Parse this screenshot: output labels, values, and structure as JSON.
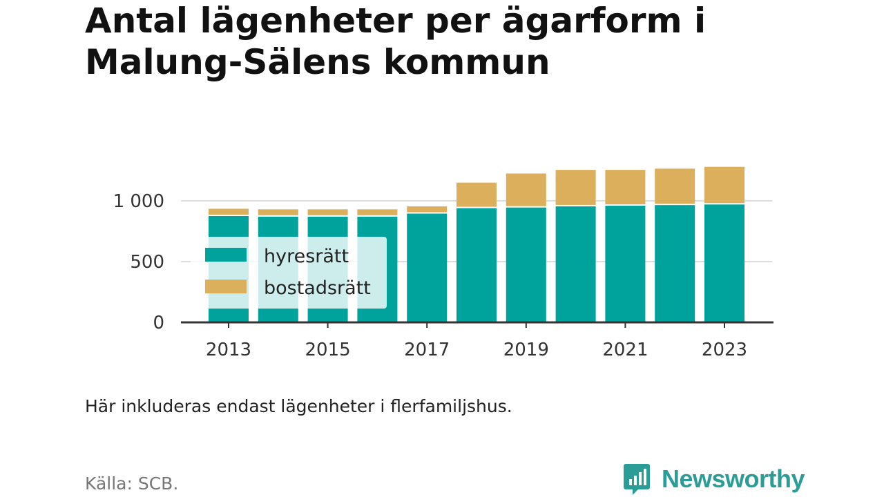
{
  "title": "Antal lägenheter per ägarform i Malung-Sälens kommun",
  "note": "Här inkluderas endast lägenheter i flerfamiljshus.",
  "source": "Källa: SCB.",
  "brand": "Newsworthy",
  "colors": {
    "hyresratt": "#00a39b",
    "bostadsratt": "#dbaf5b",
    "brand": "#2a9d96",
    "grid": "#dddddd",
    "axis": "#333333"
  },
  "chart_data": {
    "type": "bar",
    "stacked": true,
    "title": "Antal lägenheter per ägarform i Malung-Sälens kommun",
    "xlabel": "",
    "ylabel": "",
    "categories": [
      "2013",
      "2014",
      "2015",
      "2016",
      "2017",
      "2018",
      "2019",
      "2020",
      "2021",
      "2022",
      "2023"
    ],
    "x_tick_labels": [
      "2013",
      "2015",
      "2017",
      "2019",
      "2021",
      "2023"
    ],
    "y_ticks": [
      0,
      500,
      1000
    ],
    "y_tick_labels": [
      "0",
      "500",
      "1 000"
    ],
    "ylim": [
      0,
      1350
    ],
    "grid": true,
    "legend_placement": "left-middle",
    "series": [
      {
        "name": "hyresrätt",
        "values": [
          875,
          870,
          870,
          870,
          895,
          940,
          945,
          955,
          960,
          965,
          970
        ]
      },
      {
        "name": "bostadsrätt",
        "values": [
          60,
          60,
          60,
          60,
          60,
          210,
          280,
          300,
          295,
          300,
          310
        ]
      }
    ]
  }
}
